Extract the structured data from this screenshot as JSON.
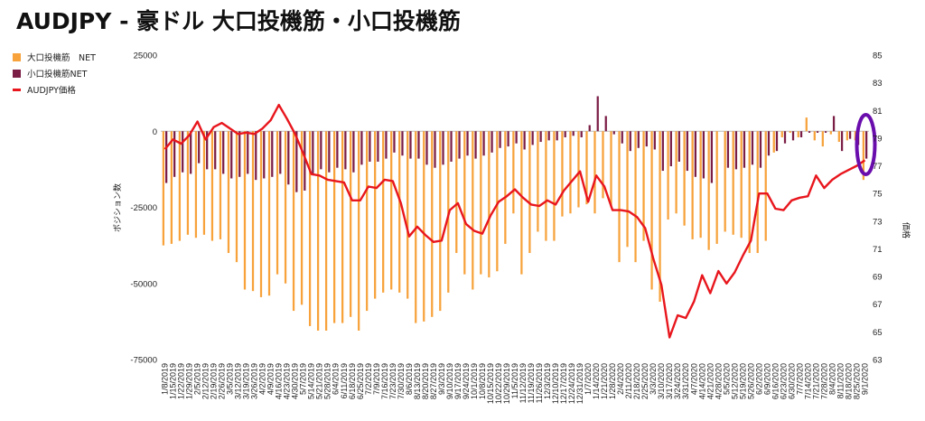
{
  "chart_data": {
    "type": "bar",
    "title": "AUDJPY - 豪ドル 大口投機筋・小口投機筋",
    "ylabel_left": "ポジション数",
    "ylabel_right": "価格",
    "ylim_left": [
      -75000,
      25000
    ],
    "ylim_right": [
      63,
      85
    ],
    "yticks_left": [
      "25000",
      "0",
      "-25000",
      "-50000",
      "-75000"
    ],
    "yticks_right": [
      "85",
      "83",
      "81",
      "79",
      "77",
      "75",
      "73",
      "71",
      "69",
      "67",
      "65",
      "63"
    ],
    "legend": [
      "大口投機筋　NET",
      "小口投機筋NET",
      "AUDJPY価格"
    ],
    "colors": {
      "large": "#F7A23B",
      "small": "#7B1E46",
      "price": "#E8161D",
      "highlight": "#6A0DAD"
    },
    "x_labels": [
      "1/8/2019",
      "1/15/2019",
      "1/22/2019",
      "1/29/2019",
      "2/5/2019",
      "2/12/2019",
      "2/19/2019",
      "2/26/2019",
      "3/5/2019",
      "3/12/2019",
      "3/19/2019",
      "3/26/2019",
      "4/2/2019",
      "4/9/2019",
      "4/16/2019",
      "4/23/2019",
      "4/30/2019",
      "5/7/2019",
      "5/14/2019",
      "5/21/2019",
      "5/28/2019",
      "6/4/2019",
      "6/11/2019",
      "6/18/2019",
      "6/25/2019",
      "7/2/2019",
      "7/9/2019",
      "7/16/2019",
      "7/23/2019",
      "7/30/2019",
      "8/6/2019",
      "8/13/2019",
      "8/20/2019",
      "8/27/2019",
      "9/3/2019",
      "9/10/2019",
      "9/17/2019",
      "9/24/2019",
      "10/1/2019",
      "10/8/2019",
      "10/15/2019",
      "10/22/2019",
      "10/29/2019",
      "11/5/2019",
      "11/12/2019",
      "11/19/2019",
      "11/26/2019",
      "12/3/2019",
      "12/10/2019",
      "12/17/2019",
      "12/24/2019",
      "12/31/2019",
      "1/7/2020",
      "1/14/2020",
      "1/21/2020",
      "1/28/2020",
      "2/4/2020",
      "2/11/2020",
      "2/18/2020",
      "2/25/2020",
      "3/3/2020",
      "3/10/2020",
      "3/17/2020",
      "3/24/2020",
      "3/31/2020",
      "4/7/2020",
      "4/14/2020",
      "4/21/2020",
      "4/28/2020",
      "5/5/2020",
      "5/12/2020",
      "5/19/2020",
      "5/26/2020",
      "6/2/2020",
      "6/9/2020",
      "6/16/2020",
      "6/23/2020",
      "6/30/2020",
      "7/7/2020",
      "7/14/2020",
      "7/21/2020",
      "7/28/2020",
      "8/4/2020",
      "8/11/2020",
      "8/18/2020",
      "8/25/2020",
      "9/1/2020"
    ],
    "x_label_every": 1,
    "series": [
      {
        "name": "大口投機筋　NET",
        "type": "bar",
        "axis": "left",
        "values": [
          -37500,
          -37000,
          -36000,
          -34000,
          -35000,
          -34000,
          -36000,
          -35500,
          -40000,
          -43000,
          -52000,
          -52500,
          -54500,
          -54000,
          -47000,
          -50000,
          -59000,
          -57000,
          -64000,
          -65500,
          -65500,
          -63000,
          -63000,
          -61000,
          -65500,
          -59000,
          -55000,
          -53000,
          -52000,
          -53000,
          -55000,
          -63000,
          -62500,
          -61000,
          -59000,
          -53000,
          -40000,
          -47000,
          -52000,
          -47000,
          -48000,
          -46000,
          -37000,
          -27000,
          -47000,
          -40000,
          -33000,
          -36000,
          -36000,
          -28000,
          -27000,
          -25000,
          -24000,
          -27000,
          -22000,
          -25000,
          -43000,
          -38000,
          -43000,
          -36000,
          -52000,
          -56000,
          -29000,
          -27000,
          -31000,
          -35500,
          -35000,
          -39000,
          -37000,
          -33000,
          -34000,
          -35000,
          -40000,
          -40000,
          -36000,
          -7000,
          -2000,
          -500,
          -2000,
          4500,
          -3000,
          -5000,
          -1000,
          -3500,
          -3000,
          -3000,
          -16000
        ]
      },
      {
        "name": "小口投機筋NET",
        "type": "bar",
        "axis": "left",
        "values": [
          -17000,
          -15000,
          -13500,
          -14000,
          -10500,
          -12500,
          -12500,
          -14000,
          -15500,
          -15000,
          -14000,
          -16000,
          -15500,
          -15000,
          -14000,
          -17500,
          -20000,
          -19500,
          -14500,
          -12500,
          -13500,
          -12000,
          -12500,
          -13500,
          -11000,
          -10000,
          -10000,
          -9000,
          -7000,
          -8000,
          -9000,
          -9000,
          -11000,
          -12000,
          -11000,
          -10000,
          -9000,
          -8000,
          -9000,
          -8000,
          -7000,
          -5500,
          -5000,
          -4000,
          -6000,
          -4500,
          -3500,
          -3000,
          -3000,
          -2000,
          -1500,
          -2000,
          2000,
          11500,
          5000,
          -1000,
          -4000,
          -6500,
          -5500,
          -5000,
          -6000,
          -13000,
          -11500,
          -10000,
          -13000,
          -15000,
          -15500,
          -17000,
          0,
          -12000,
          -12500,
          -12000,
          -11000,
          -12000,
          -8000,
          -6500,
          -4000,
          -3000,
          -2000,
          -500,
          -500,
          -500,
          5000,
          -6500,
          -2500,
          -4500,
          -9000
        ]
      },
      {
        "name": "AUDJPY価格",
        "type": "line",
        "axis": "right",
        "values": [
          78.2,
          78.9,
          78.6,
          79.2,
          80.2,
          78.9,
          79.8,
          80.1,
          79.7,
          79.3,
          79.4,
          79.3,
          79.7,
          80.3,
          81.4,
          80.4,
          79.3,
          77.9,
          76.4,
          76.3,
          76.0,
          75.9,
          75.8,
          74.5,
          74.5,
          75.5,
          75.4,
          76.0,
          75.9,
          74.3,
          71.9,
          72.6,
          72.0,
          71.5,
          71.6,
          73.8,
          74.3,
          72.8,
          72.3,
          72.1,
          73.4,
          74.4,
          74.8,
          75.3,
          74.7,
          74.2,
          74.1,
          74.5,
          74.2,
          75.2,
          75.9,
          76.6,
          74.4,
          76.3,
          75.5,
          73.8,
          73.8,
          73.7,
          73.3,
          72.5,
          70.3,
          68.4,
          64.6,
          66.2,
          66.0,
          67.2,
          69.1,
          67.8,
          69.4,
          68.5,
          69.3,
          70.5,
          71.6,
          75.0,
          75.0,
          73.9,
          73.8,
          74.5,
          74.7,
          74.8,
          76.3,
          75.4,
          76.0,
          76.4,
          76.7,
          77.0,
          77.4
        ]
      }
    ],
    "annotations": [
      {
        "type": "ellipse",
        "target_index": 86,
        "color": "#6A0DAD"
      }
    ]
  }
}
